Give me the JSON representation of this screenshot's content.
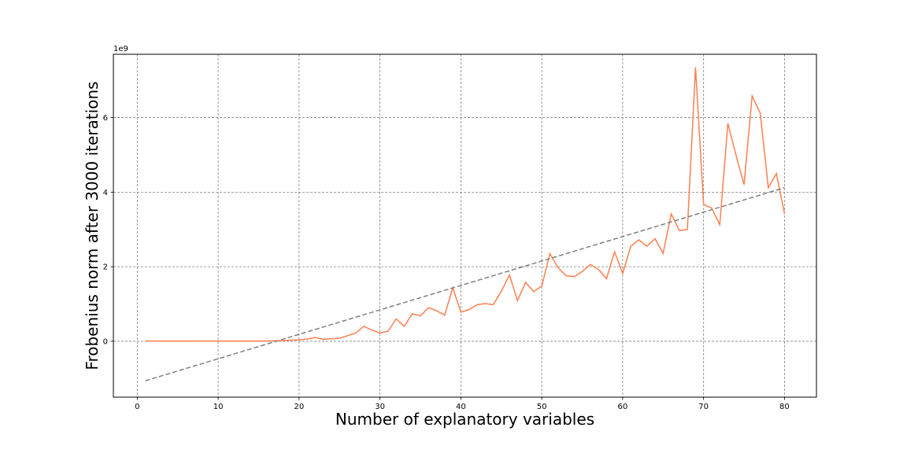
{
  "chart_data": {
    "type": "line",
    "xlabel": "Number of explanatory variables",
    "ylabel": "Frobenius norm after 3000 iterations",
    "y_offset_text": "1e9",
    "xlim": [
      -2.95,
      83.95
    ],
    "ylim": [
      -1.5,
      7.7
    ],
    "x_ticks": [
      0,
      10,
      20,
      30,
      40,
      50,
      60,
      70,
      80
    ],
    "y_ticks": [
      0,
      2,
      4,
      6
    ],
    "grid": true,
    "series": [
      {
        "style": "solid",
        "color": "#ff7f50",
        "x": [
          1,
          2,
          3,
          4,
          5,
          6,
          7,
          8,
          9,
          10,
          11,
          12,
          13,
          14,
          15,
          16,
          17,
          18,
          19,
          20,
          21,
          22,
          23,
          24,
          25,
          26,
          27,
          28,
          29,
          30,
          31,
          32,
          33,
          34,
          35,
          36,
          37,
          38,
          39,
          40,
          41,
          42,
          43,
          44,
          45,
          46,
          47,
          48,
          49,
          50,
          51,
          52,
          53,
          54,
          55,
          56,
          57,
          58,
          59,
          60,
          61,
          62,
          63,
          64,
          65,
          66,
          67,
          68,
          69,
          70,
          71,
          72,
          73,
          74,
          75,
          76,
          77,
          78,
          79,
          80
        ],
        "y": [
          0.005,
          0.005,
          0.005,
          0.005,
          0.005,
          0.005,
          0.005,
          0.005,
          0.005,
          0.005,
          0.005,
          0.005,
          0.005,
          0.005,
          0.005,
          0.008,
          0.012,
          0.02,
          0.03,
          0.04,
          0.06,
          0.1,
          0.05,
          0.07,
          0.08,
          0.15,
          0.22,
          0.4,
          0.3,
          0.22,
          0.27,
          0.6,
          0.4,
          0.74,
          0.68,
          0.9,
          0.82,
          0.7,
          1.44,
          0.78,
          0.85,
          0.98,
          1.01,
          0.98,
          1.34,
          1.78,
          1.09,
          1.58,
          1.33,
          1.48,
          2.35,
          1.98,
          1.76,
          1.73,
          1.87,
          2.06,
          1.93,
          1.68,
          2.4,
          1.82,
          2.55,
          2.72,
          2.55,
          2.75,
          2.36,
          3.42,
          2.97,
          3.0,
          7.35,
          3.67,
          3.57,
          3.13,
          5.85,
          5.0,
          4.2,
          6.58,
          6.12,
          4.12,
          4.5,
          3.42
        ]
      },
      {
        "style": "dashed",
        "color": "#808080",
        "x": [
          1,
          80
        ],
        "y": [
          -1.06,
          4.12
        ]
      }
    ]
  }
}
